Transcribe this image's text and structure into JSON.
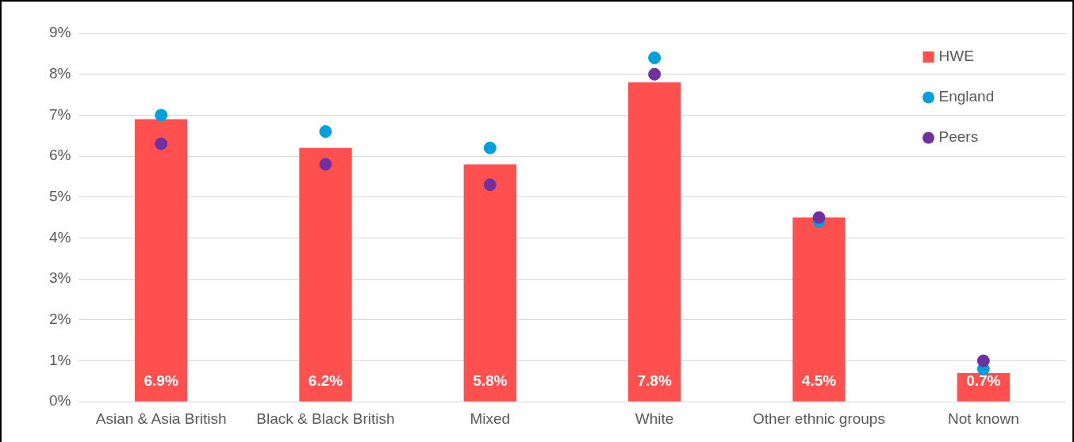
{
  "chart_data": {
    "type": "bar",
    "categories": [
      "Asian & Asia British",
      "Black & Black British",
      "Mixed",
      "White",
      "Other ethnic groups",
      "Not known"
    ],
    "series": [
      {
        "name": "HWE",
        "color": "#ff5050",
        "values": [
          6.9,
          6.2,
          5.8,
          7.8,
          4.5,
          0.7
        ],
        "value_labels": [
          "6.9%",
          "6.2%",
          "5.8%",
          "7.8%",
          "4.5%",
          "0.7%"
        ]
      },
      {
        "name": "England",
        "type": "scatter",
        "color": "#00a0dc",
        "values": [
          7.0,
          6.6,
          6.2,
          8.4,
          4.4,
          0.8
        ]
      },
      {
        "name": "Peers",
        "type": "scatter",
        "color": "#7030a0",
        "values": [
          6.3,
          5.8,
          5.3,
          8.0,
          4.5,
          1.0
        ]
      }
    ],
    "ylim": [
      0,
      9
    ],
    "yticks": [
      {
        "value": 0,
        "label": "0%"
      },
      {
        "value": 1,
        "label": "1%"
      },
      {
        "value": 2,
        "label": "2%"
      },
      {
        "value": 3,
        "label": "3%"
      },
      {
        "value": 4,
        "label": "4%"
      },
      {
        "value": 5,
        "label": "5%"
      },
      {
        "value": 6,
        "label": "6%"
      },
      {
        "value": 7,
        "label": "7%"
      },
      {
        "value": 8,
        "label": "8%"
      },
      {
        "value": 9,
        "label": "9%"
      }
    ],
    "grid": "y",
    "legend": "top right",
    "marker": "circle"
  }
}
